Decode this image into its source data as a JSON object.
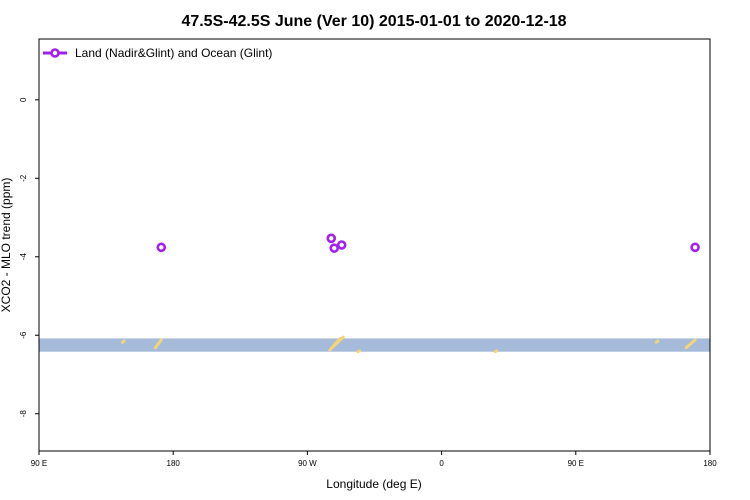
{
  "chart_data": {
    "type": "scatter",
    "title": "47.5S-42.5S June (Ver 10)   2015-01-01 to 2020-12-18",
    "xlabel": "Longitude (deg E)",
    "ylabel": "XCO2 - MLO trend (ppm)",
    "x_ticks": [
      {
        "value": 90,
        "label": "90 E"
      },
      {
        "value": 180,
        "label": "180"
      },
      {
        "value": 270,
        "label": "90 W"
      },
      {
        "value": 360,
        "label": "0"
      },
      {
        "value": 450,
        "label": "90 E"
      },
      {
        "value": 540,
        "label": "180"
      }
    ],
    "y_ticks": [
      {
        "value": 0,
        "label": "0"
      },
      {
        "value": -2,
        "label": "-2"
      },
      {
        "value": -4,
        "label": "-4"
      },
      {
        "value": -6,
        "label": "-6"
      },
      {
        "value": -8,
        "label": "-8"
      }
    ],
    "xlim": [
      90,
      540
    ],
    "ylim": [
      -8.95,
      1.55
    ],
    "grid": false,
    "legend_position": "top-left",
    "series": [
      {
        "name": "Land (Nadir&Glint) and Ocean (Glint)",
        "color": "#a020f0",
        "marker": "open-circle",
        "points": [
          {
            "x": 172,
            "y": -3.76
          },
          {
            "x": 286,
            "y": -3.53
          },
          {
            "x": 288,
            "y": -3.78
          },
          {
            "x": 293,
            "y": -3.7
          },
          {
            "x": 530,
            "y": -3.76
          }
        ]
      }
    ],
    "background_band": {
      "color": "#a5bbd9",
      "y_range": [
        -6.42,
        -6.08
      ]
    },
    "land_marks": {
      "color": "#f5d47a",
      "segments": [
        {
          "x": [
            146,
            147
          ],
          "y": [
            -6.18,
            -6.15
          ]
        },
        {
          "x": [
            168,
            172
          ],
          "y": [
            -6.32,
            -6.12
          ]
        },
        {
          "x": [
            285,
            292
          ],
          "y": [
            -6.38,
            -6.08
          ]
        },
        {
          "x": [
            287,
            294
          ],
          "y": [
            -6.3,
            -6.05
          ]
        },
        {
          "x": [
            304,
            305
          ],
          "y": [
            -6.42,
            -6.4
          ]
        },
        {
          "x": [
            396,
            397
          ],
          "y": [
            -6.42,
            -6.4
          ]
        },
        {
          "x": [
            504,
            505
          ],
          "y": [
            -6.18,
            -6.15
          ]
        },
        {
          "x": [
            524,
            530
          ],
          "y": [
            -6.32,
            -6.12
          ]
        }
      ]
    }
  }
}
